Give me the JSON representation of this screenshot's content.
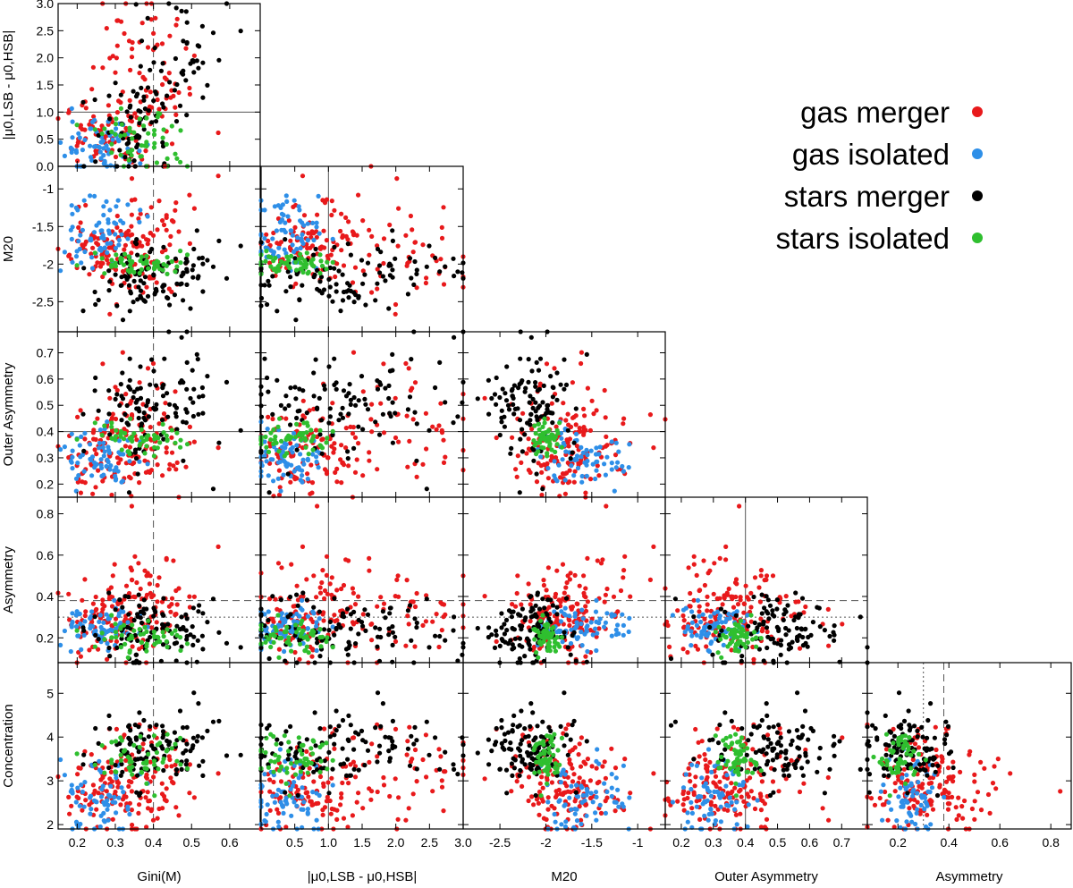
{
  "legend": {
    "entries": [
      {
        "label": "gas merger",
        "color": "#e8191b"
      },
      {
        "label": "gas isolated",
        "color": "#2e8fe8"
      },
      {
        "label": "stars merger",
        "color": "#000000"
      },
      {
        "label": "stars isolated",
        "color": "#2fbf2f"
      }
    ]
  },
  "chart_data": {
    "type": "scatter",
    "variables": [
      {
        "key": "gini",
        "label": "Gini(M)",
        "range": [
          0.15,
          0.68
        ],
        "ticks": [
          0.2,
          0.3,
          0.4,
          0.5,
          0.6
        ]
      },
      {
        "key": "dmu",
        "label": "|μ0,LSB - μ0,HSB|",
        "range": [
          0.0,
          3.0
        ],
        "ticks": [
          0.0,
          0.5,
          1.0,
          1.5,
          2.0,
          2.5,
          3.0
        ]
      },
      {
        "key": "m20",
        "label": "M20",
        "range": [
          -2.9,
          -0.7
        ],
        "ticks": [
          -2.5,
          -2.0,
          -1.5,
          -1.0
        ]
      },
      {
        "key": "oasym",
        "label": "Outer Asymmetry",
        "range": [
          0.15,
          0.78
        ],
        "ticks": [
          0.2,
          0.3,
          0.4,
          0.5,
          0.6,
          0.7
        ]
      },
      {
        "key": "asym",
        "label": "Asymmetry",
        "range": [
          0.08,
          0.88
        ],
        "ticks": [
          0.2,
          0.4,
          0.6,
          0.8
        ]
      },
      {
        "key": "conc",
        "label": "Concentration",
        "range": [
          1.9,
          5.7
        ],
        "ticks": [
          2,
          3,
          4,
          5
        ]
      }
    ],
    "tick_labels": {
      "dmu_x": [
        "0.5",
        "1.0",
        "1.5",
        "2.0",
        "2.5",
        "3.0"
      ],
      "dmu_y": [
        "0.0",
        "0.5",
        "1.0",
        "1.5",
        "2.0",
        "2.5",
        "3.0"
      ]
    },
    "reference_lines": {
      "gini": 0.4,
      "dmu": 1.0,
      "oasym": 0.4,
      "asym": [
        0.38,
        0.3
      ]
    },
    "series": [
      {
        "name": "gas merger",
        "color": "#e8191b",
        "centers": [
          {
            "n": 70,
            "gini": [
              0.27,
              0.05
            ],
            "dmu": [
              0.6,
              0.3
            ],
            "m20": [
              -1.8,
              0.25
            ],
            "oasym": [
              0.32,
              0.08
            ],
            "asym": [
              0.3,
              0.09
            ],
            "conc": [
              2.7,
              0.5
            ]
          },
          {
            "n": 50,
            "gini": [
              0.34,
              0.06
            ],
            "dmu": [
              2.0,
              0.6
            ],
            "m20": [
              -1.95,
              0.3
            ],
            "oasym": [
              0.42,
              0.12
            ],
            "asym": [
              0.3,
              0.1
            ],
            "conc": [
              3.3,
              0.6
            ]
          },
          {
            "n": 40,
            "gini": [
              0.38,
              0.07
            ],
            "dmu": [
              1.2,
              0.5
            ],
            "m20": [
              -1.55,
              0.3
            ],
            "oasym": [
              0.35,
              0.1
            ],
            "asym": [
              0.45,
              0.15
            ],
            "conc": [
              2.6,
              0.5
            ]
          }
        ]
      },
      {
        "name": "gas isolated",
        "color": "#2e8fe8",
        "centers": [
          {
            "n": 70,
            "gini": [
              0.26,
              0.05
            ],
            "dmu": [
              0.35,
              0.25
            ],
            "m20": [
              -1.6,
              0.25
            ],
            "oasym": [
              0.28,
              0.06
            ],
            "asym": [
              0.25,
              0.05
            ],
            "conc": [
              2.6,
              0.4
            ]
          }
        ]
      },
      {
        "name": "stars merger",
        "color": "#000000",
        "centers": [
          {
            "n": 70,
            "gini": [
              0.36,
              0.06
            ],
            "dmu": [
              0.8,
              0.5
            ],
            "m20": [
              -2.2,
              0.25
            ],
            "oasym": [
              0.5,
              0.1
            ],
            "asym": [
              0.25,
              0.1
            ],
            "conc": [
              3.7,
              0.4
            ]
          },
          {
            "n": 40,
            "gini": [
              0.5,
              0.07
            ],
            "dmu": [
              2.2,
              0.5
            ],
            "m20": [
              -2.05,
              0.2
            ],
            "oasym": [
              0.52,
              0.1
            ],
            "asym": [
              0.22,
              0.08
            ],
            "conc": [
              3.9,
              0.5
            ]
          }
        ]
      },
      {
        "name": "stars isolated",
        "color": "#2fbf2f",
        "centers": [
          {
            "n": 55,
            "gini": [
              0.38,
              0.06
            ],
            "dmu": [
              0.5,
              0.3
            ],
            "m20": [
              -2.0,
              0.08
            ],
            "oasym": [
              0.37,
              0.03
            ],
            "asym": [
              0.2,
              0.04
            ],
            "conc": [
              3.5,
              0.3
            ]
          }
        ]
      }
    ]
  }
}
